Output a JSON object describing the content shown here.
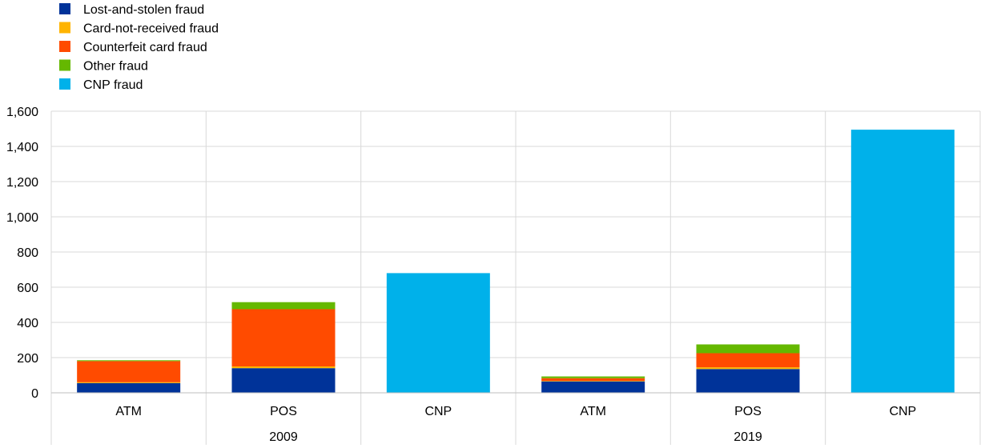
{
  "chart_data": {
    "type": "bar",
    "stacked": true,
    "legend": {
      "placement": "top-left"
    },
    "groups": [
      {
        "label": "2009",
        "categories": [
          "ATM",
          "POS",
          "CNP"
        ]
      },
      {
        "label": "2019",
        "categories": [
          "ATM",
          "POS",
          "CNP"
        ]
      }
    ],
    "categories": [
      "ATM",
      "POS",
      "CNP",
      "ATM",
      "POS",
      "CNP"
    ],
    "series": [
      {
        "name": "Lost-and-stolen fraud",
        "color": "#003399",
        "values": [
          55,
          140,
          0,
          65,
          135,
          0
        ]
      },
      {
        "name": "Card-not-received fraud",
        "color": "#FFB400",
        "values": [
          5,
          10,
          0,
          3,
          10,
          0
        ]
      },
      {
        "name": "Counterfeit card fraud",
        "color": "#FF4B00",
        "values": [
          120,
          325,
          0,
          15,
          80,
          0
        ]
      },
      {
        "name": "Other fraud",
        "color": "#65B800",
        "values": [
          5,
          40,
          0,
          10,
          50,
          0
        ]
      },
      {
        "name": "CNP fraud",
        "color": "#00B1EA",
        "values": [
          0,
          0,
          680,
          0,
          0,
          1495
        ]
      }
    ],
    "yticks": [
      "0",
      "200",
      "400",
      "600",
      "800",
      "1,000",
      "1,200",
      "1,400",
      "1,600"
    ],
    "ytick_values": [
      0,
      200,
      400,
      600,
      800,
      1000,
      1200,
      1400,
      1600
    ],
    "ylim": [
      0,
      1600
    ],
    "grid": true,
    "title": "",
    "xlabel": "",
    "ylabel": ""
  }
}
